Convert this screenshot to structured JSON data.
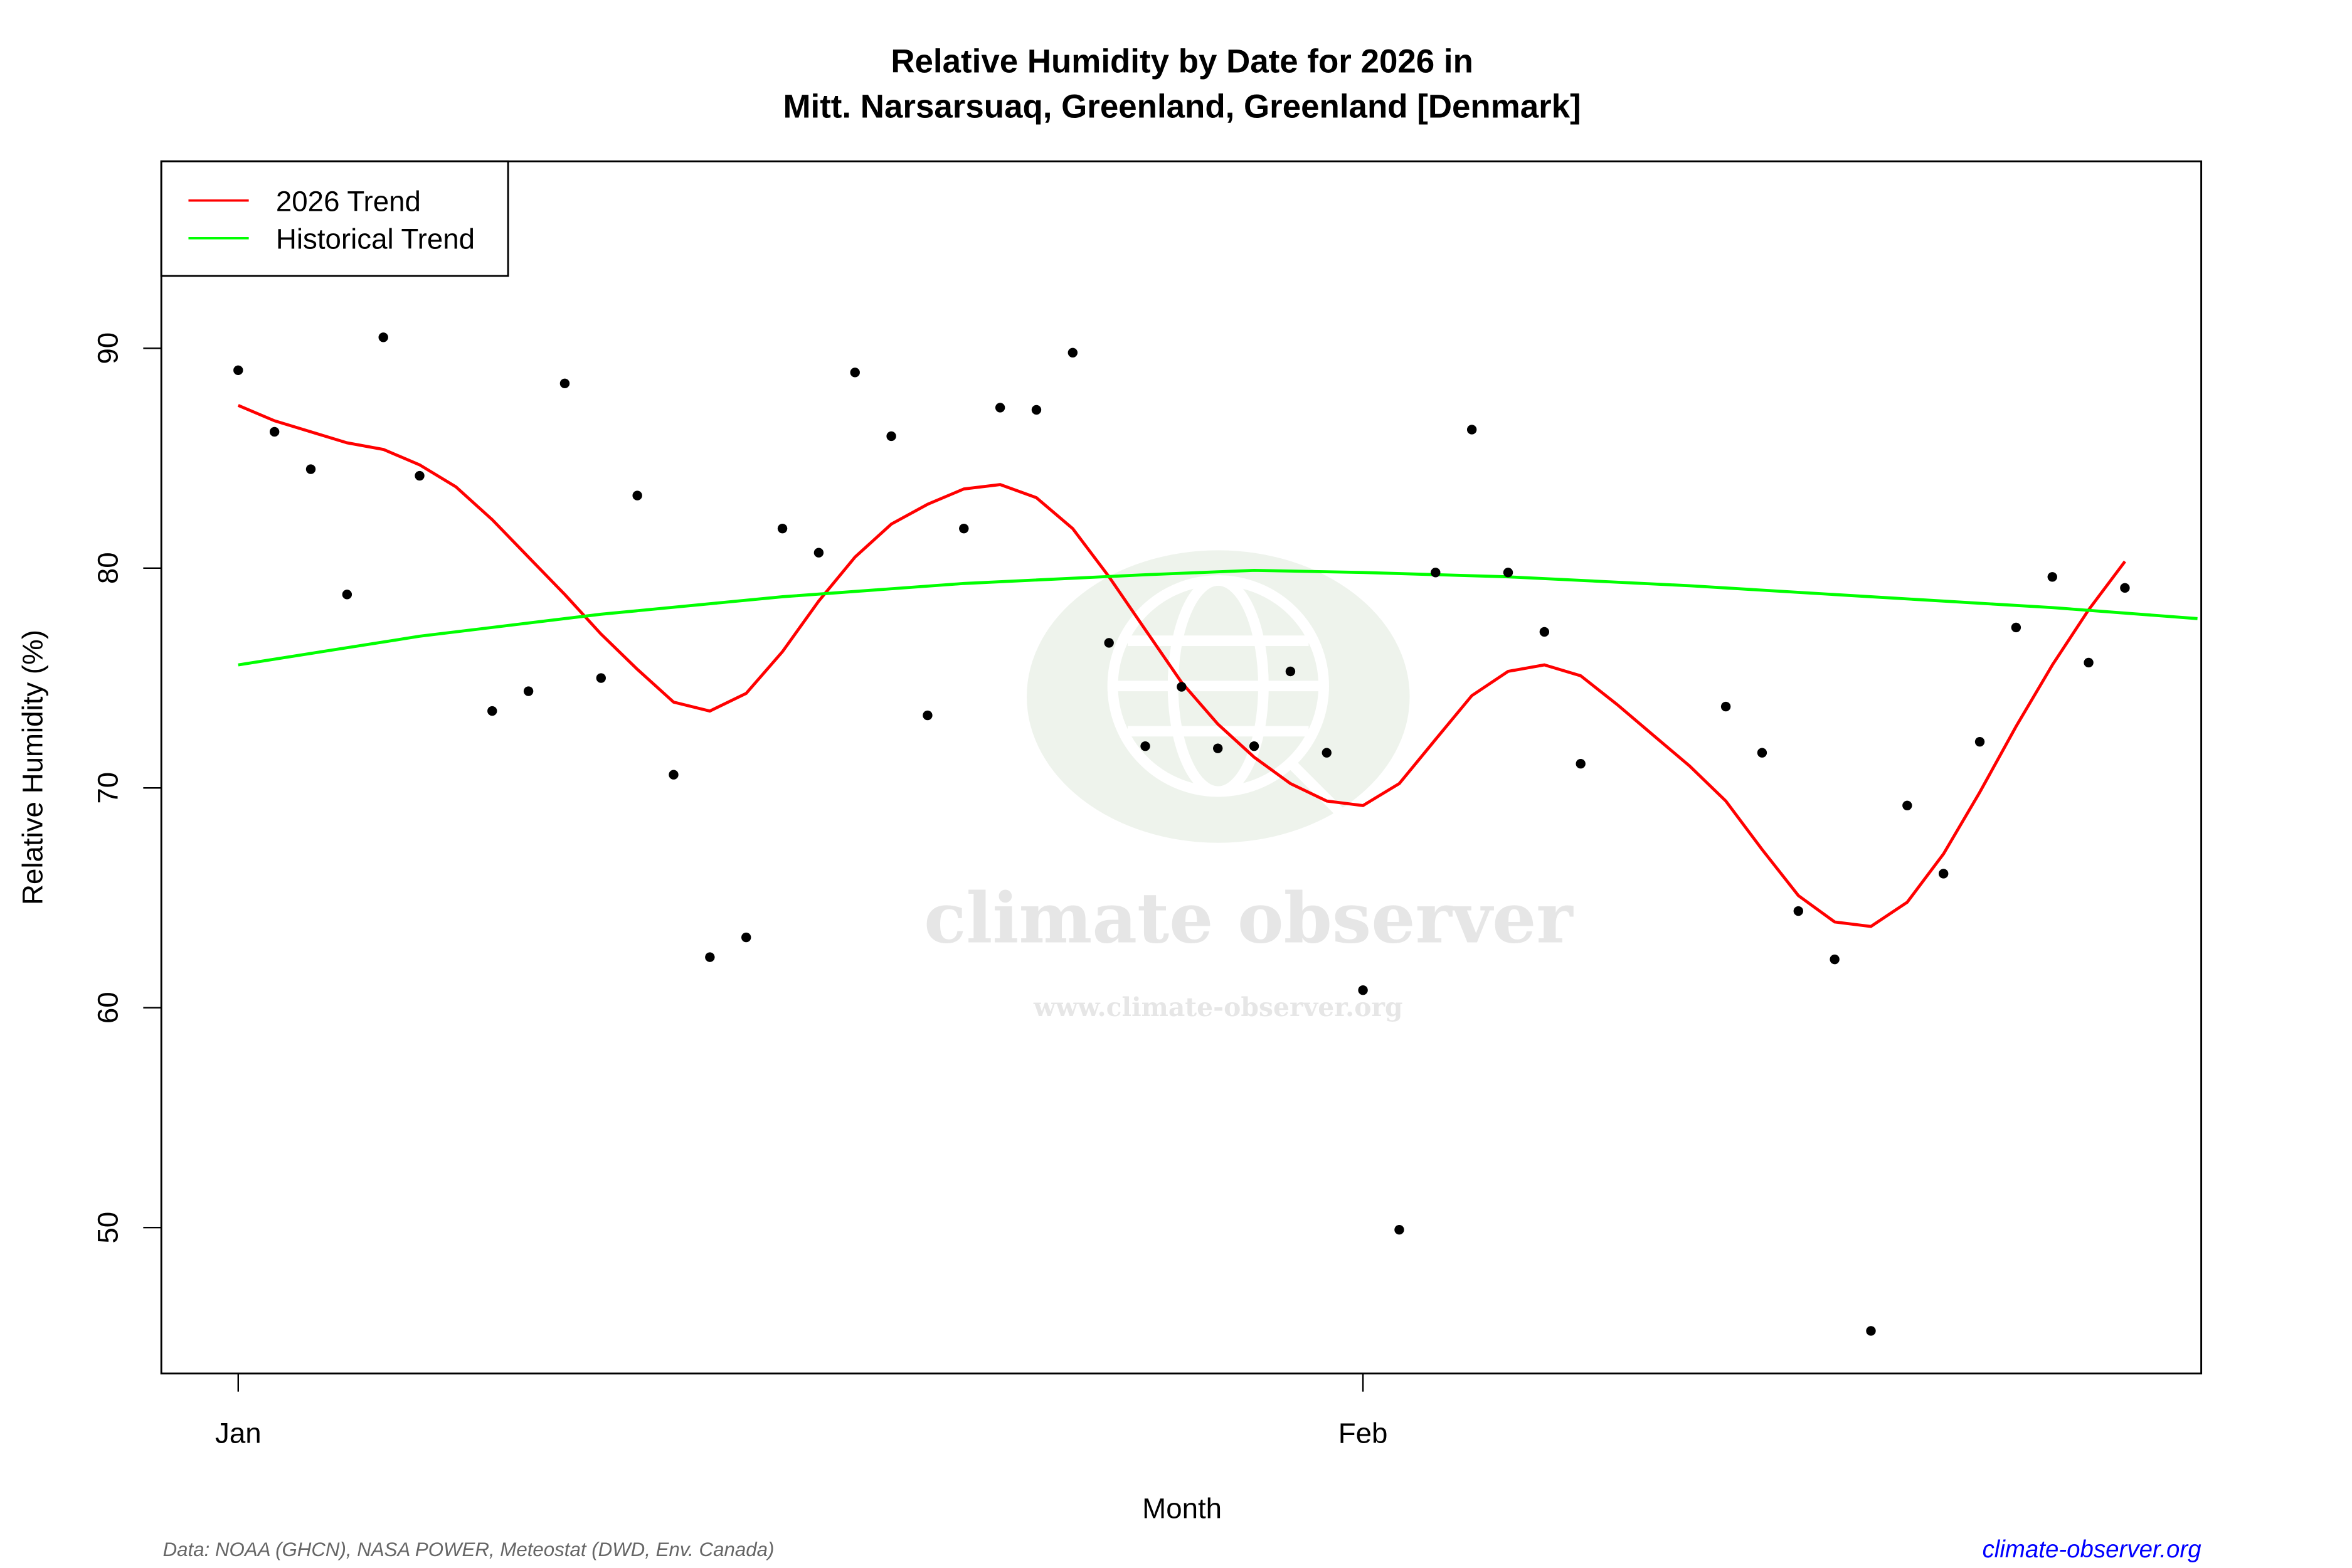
{
  "chart_data": {
    "type": "scatter",
    "title_line1": "Relative Humidity by Date for 2026 in",
    "title_line2": "Mitt. Narsarsuaq, Greenland, Greenland [Denmark]",
    "xlabel": "Month",
    "ylabel": "Relative Humidity (%)",
    "xlim": [
      "2025-12-29",
      "2026-02-24"
    ],
    "ylim": [
      43.4,
      98.5
    ],
    "x_ticks": [
      {
        "date": "2026-01-01",
        "label": "Jan"
      },
      {
        "date": "2026-02-01",
        "label": "Feb"
      }
    ],
    "y_ticks": [
      50,
      60,
      70,
      80,
      90
    ],
    "grid": false,
    "legend": {
      "placement": "top-left",
      "entries": [
        {
          "label": "2026 Trend",
          "color": "#ff0000"
        },
        {
          "label": "Historical Trend",
          "color": "#00ff00"
        }
      ]
    },
    "points": {
      "color": "#000000",
      "data": [
        [
          "2026-01-01",
          89.0
        ],
        [
          "2026-01-02",
          86.2
        ],
        [
          "2026-01-03",
          84.5
        ],
        [
          "2026-01-04",
          78.8
        ],
        [
          "2026-01-05",
          90.5
        ],
        [
          "2026-01-06",
          84.2
        ],
        [
          "2026-01-08",
          73.5
        ],
        [
          "2026-01-09",
          74.4
        ],
        [
          "2026-01-10",
          88.4
        ],
        [
          "2026-01-11",
          75.0
        ],
        [
          "2026-01-12",
          83.3
        ],
        [
          "2026-01-13",
          70.6
        ],
        [
          "2026-01-14",
          62.3
        ],
        [
          "2026-01-15",
          63.2
        ],
        [
          "2026-01-16",
          81.8
        ],
        [
          "2026-01-17",
          80.7
        ],
        [
          "2026-01-18",
          88.9
        ],
        [
          "2026-01-19",
          86.0
        ],
        [
          "2026-01-20",
          73.3
        ],
        [
          "2026-01-21",
          81.8
        ],
        [
          "2026-01-22",
          87.3
        ],
        [
          "2026-01-23",
          87.2
        ],
        [
          "2026-01-24",
          89.8
        ],
        [
          "2026-01-25",
          76.6
        ],
        [
          "2026-01-26",
          71.9
        ],
        [
          "2026-01-27",
          74.6
        ],
        [
          "2026-01-28",
          71.8
        ],
        [
          "2026-01-29",
          71.9
        ],
        [
          "2026-01-30",
          75.3
        ],
        [
          "2026-01-31",
          71.6
        ],
        [
          "2026-02-01",
          60.8
        ],
        [
          "2026-02-02",
          49.9
        ],
        [
          "2026-02-03",
          79.8
        ],
        [
          "2026-02-04",
          86.3
        ],
        [
          "2026-02-05",
          79.8
        ],
        [
          "2026-02-06",
          77.1
        ],
        [
          "2026-02-07",
          71.1
        ],
        [
          "2026-02-11",
          73.7
        ],
        [
          "2026-02-12",
          71.6
        ],
        [
          "2026-02-13",
          64.4
        ],
        [
          "2026-02-14",
          62.2
        ],
        [
          "2026-02-15",
          45.3
        ],
        [
          "2026-02-16",
          69.2
        ],
        [
          "2026-02-17",
          66.1
        ],
        [
          "2026-02-18",
          72.1
        ],
        [
          "2026-02-19",
          77.3
        ],
        [
          "2026-02-20",
          79.6
        ],
        [
          "2026-02-21",
          75.7
        ],
        [
          "2026-02-22",
          79.1
        ]
      ]
    },
    "series": [
      {
        "name": "2026 Trend",
        "color": "#ff0000",
        "data": [
          [
            "2026-01-01",
            87.4
          ],
          [
            "2026-01-02",
            86.7
          ],
          [
            "2026-01-03",
            86.2
          ],
          [
            "2026-01-04",
            85.7
          ],
          [
            "2026-01-05",
            85.4
          ],
          [
            "2026-01-06",
            84.7
          ],
          [
            "2026-01-07",
            83.7
          ],
          [
            "2026-01-08",
            82.2
          ],
          [
            "2026-01-09",
            80.5
          ],
          [
            "2026-01-10",
            78.8
          ],
          [
            "2026-01-11",
            77.0
          ],
          [
            "2026-01-12",
            75.4
          ],
          [
            "2026-01-13",
            73.9
          ],
          [
            "2026-01-14",
            73.5
          ],
          [
            "2026-01-15",
            74.3
          ],
          [
            "2026-01-16",
            76.2
          ],
          [
            "2026-01-17",
            78.5
          ],
          [
            "2026-01-18",
            80.5
          ],
          [
            "2026-01-19",
            82.0
          ],
          [
            "2026-01-20",
            82.9
          ],
          [
            "2026-01-21",
            83.6
          ],
          [
            "2026-01-22",
            83.8
          ],
          [
            "2026-01-23",
            83.2
          ],
          [
            "2026-01-24",
            81.8
          ],
          [
            "2026-01-25",
            79.6
          ],
          [
            "2026-01-26",
            77.2
          ],
          [
            "2026-01-27",
            74.8
          ],
          [
            "2026-01-28",
            72.9
          ],
          [
            "2026-01-29",
            71.4
          ],
          [
            "2026-01-30",
            70.2
          ],
          [
            "2026-01-31",
            69.4
          ],
          [
            "2026-02-01",
            69.2
          ],
          [
            "2026-02-02",
            70.2
          ],
          [
            "2026-02-03",
            72.2
          ],
          [
            "2026-02-04",
            74.2
          ],
          [
            "2026-02-05",
            75.3
          ],
          [
            "2026-02-06",
            75.6
          ],
          [
            "2026-02-07",
            75.1
          ],
          [
            "2026-02-08",
            73.8
          ],
          [
            "2026-02-09",
            72.4
          ],
          [
            "2026-02-10",
            71.0
          ],
          [
            "2026-02-11",
            69.4
          ],
          [
            "2026-02-12",
            67.2
          ],
          [
            "2026-02-13",
            65.1
          ],
          [
            "2026-02-14",
            63.9
          ],
          [
            "2026-02-15",
            63.7
          ],
          [
            "2026-02-16",
            64.8
          ],
          [
            "2026-02-17",
            67.0
          ],
          [
            "2026-02-18",
            69.8
          ],
          [
            "2026-02-19",
            72.8
          ],
          [
            "2026-02-20",
            75.6
          ],
          [
            "2026-02-21",
            78.1
          ],
          [
            "2026-02-22",
            80.3
          ]
        ]
      },
      {
        "name": "Historical Trend",
        "color": "#00ff00",
        "data": [
          [
            "2026-01-01",
            75.6
          ],
          [
            "2026-01-06",
            76.9
          ],
          [
            "2026-01-11",
            77.9
          ],
          [
            "2026-01-16",
            78.7
          ],
          [
            "2026-01-21",
            79.3
          ],
          [
            "2026-01-26",
            79.7
          ],
          [
            "2026-01-29",
            79.9
          ],
          [
            "2026-02-01",
            79.8
          ],
          [
            "2026-02-05",
            79.6
          ],
          [
            "2026-02-10",
            79.2
          ],
          [
            "2026-02-15",
            78.7
          ],
          [
            "2026-02-20",
            78.2
          ],
          [
            "2026-02-24",
            77.7
          ]
        ]
      }
    ]
  },
  "watermark": {
    "brand": "climate observer",
    "url": "www.climate-observer.org"
  },
  "footer": {
    "source": "Data: NOAA (GHCN), NASA POWER, Meteostat (DWD, Env. Canada)",
    "site": "climate-observer.org",
    "site_color": "#0000ff"
  }
}
